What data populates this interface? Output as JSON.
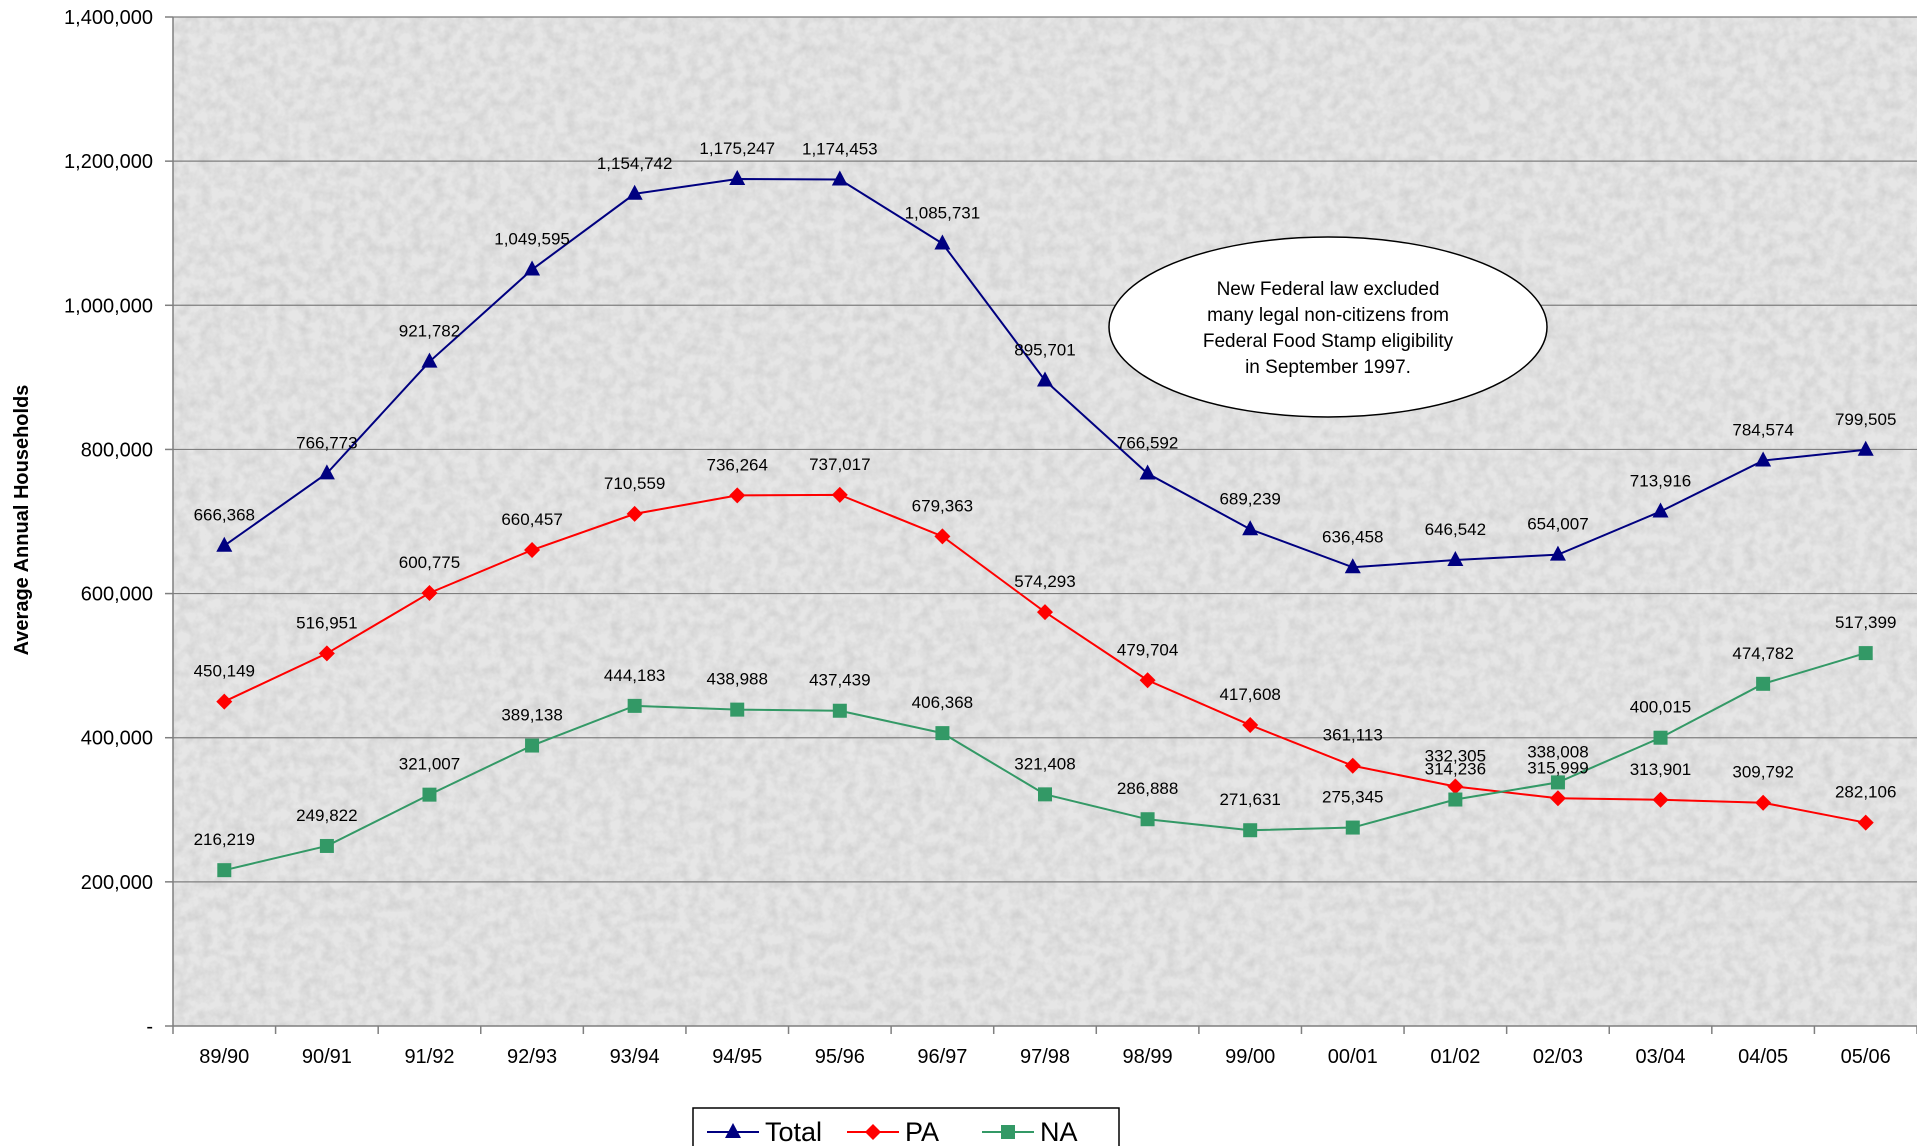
{
  "chart_data": {
    "type": "line",
    "title": "",
    "xlabel": "",
    "ylabel": "Average Annual Households",
    "categories": [
      "89/90",
      "90/91",
      "91/92",
      "92/93",
      "93/94",
      "94/95",
      "95/96",
      "96/97",
      "97/98",
      "98/99",
      "99/00",
      "00/01",
      "01/02",
      "02/03",
      "03/04",
      "04/05",
      "05/06"
    ],
    "ylim": [
      0,
      1400000
    ],
    "yticks": [
      0,
      200000,
      400000,
      600000,
      800000,
      1000000,
      1200000,
      1400000
    ],
    "ytick_labels": [
      "-",
      "200,000",
      "400,000",
      "600,000",
      "800,000",
      "1,000,000",
      "1,200,000",
      "1,400,000"
    ],
    "grid": "horizontal",
    "legend_position": "bottom",
    "series": [
      {
        "name": "Total",
        "color": "#000080",
        "marker": "triangle",
        "values": [
          666368,
          766773,
          921782,
          1049595,
          1154742,
          1175247,
          1174453,
          1085731,
          895701,
          766592,
          689239,
          636458,
          646542,
          654007,
          713916,
          784574,
          799505
        ],
        "labels": [
          "666,368",
          "766,773",
          "921,782",
          "1,049,595",
          "1,154,742",
          "1,175,247",
          "1,174,453",
          "1,085,731",
          "895,701",
          "766,592",
          "689,239",
          "636,458",
          "646,542",
          "654,007",
          "713,916",
          "784,574",
          "799,505"
        ]
      },
      {
        "name": "PA",
        "color": "#ff0000",
        "marker": "diamond",
        "values": [
          450149,
          516951,
          600775,
          660457,
          710559,
          736264,
          737017,
          679363,
          574293,
          479704,
          417608,
          361113,
          332305,
          315999,
          313901,
          309792,
          282106
        ],
        "labels": [
          "450,149",
          "516,951",
          "600,775",
          "660,457",
          "710,559",
          "736,264",
          "737,017",
          "679,363",
          "574,293",
          "479,704",
          "417,608",
          "361,113",
          "332,305",
          "315,999",
          "313,901",
          "309,792",
          "282,106"
        ]
      },
      {
        "name": "NA",
        "color": "#339966",
        "marker": "square",
        "values": [
          216219,
          249822,
          321007,
          389138,
          444183,
          438988,
          437439,
          406368,
          321408,
          286888,
          271631,
          275345,
          314236,
          338008,
          400015,
          474782,
          517399
        ],
        "labels": [
          "216,219",
          "249,822",
          "321,007",
          "389,138",
          "444,183",
          "438,988",
          "437,439",
          "406,368",
          "321,408",
          "286,888",
          "271,631",
          "275,345",
          "314,236",
          "338,008",
          "400,015",
          "474,782",
          "517,399"
        ]
      }
    ],
    "annotation": {
      "lines": [
        "New Federal law excluded",
        "many legal non-citizens from",
        "Federal Food Stamp eligibility",
        "in September 1997."
      ]
    }
  }
}
